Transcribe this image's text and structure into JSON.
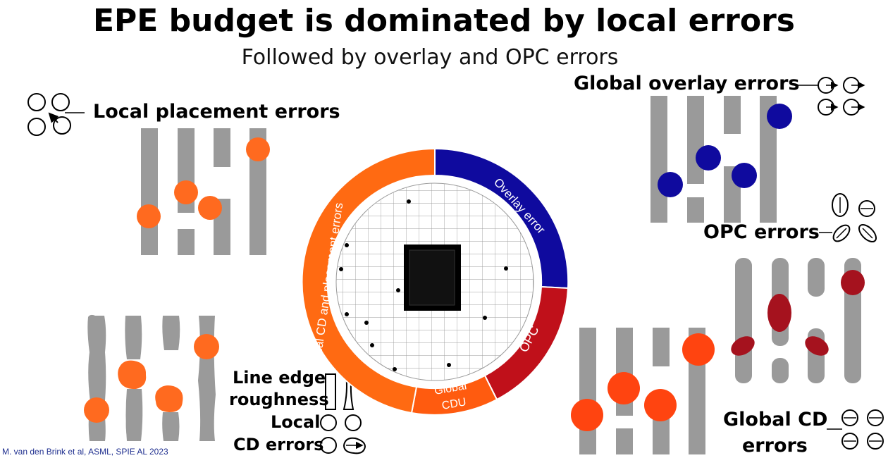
{
  "title": "EPE budget is dominated by local errors",
  "subtitle": "Followed by overlay and OPC errors",
  "labels": {
    "local_placement": "Local placement errors",
    "global_overlay": "Global overlay errors",
    "opc": "OPC errors",
    "ler_line1": "Line edge",
    "ler_line2": "roughness",
    "local_cd_line1": "Local",
    "local_cd_line2": "CD errors",
    "global_cd_line1": "Global CD",
    "global_cd_line2": "errors"
  },
  "donut": {
    "segments": [
      {
        "label": "Overlay error",
        "color": "#0f0a9e"
      },
      {
        "label": "OPC",
        "color": "#c0101a"
      },
      {
        "label": "Global",
        "label2": "CDU",
        "color": "#ff5b0f"
      },
      {
        "label": "Local CD and placement errors",
        "color": "#ff6a12"
      }
    ]
  },
  "colors": {
    "line_gray": "#9a9a9a",
    "local_dot": "#ff6a1f",
    "overlay_dot": "#0f0a9e",
    "opc_dot": "#a5121e",
    "global_cd_dot": "#ff4410"
  },
  "citation": "M. van den Brink et al,  ASML, SPIE AL 2023"
}
